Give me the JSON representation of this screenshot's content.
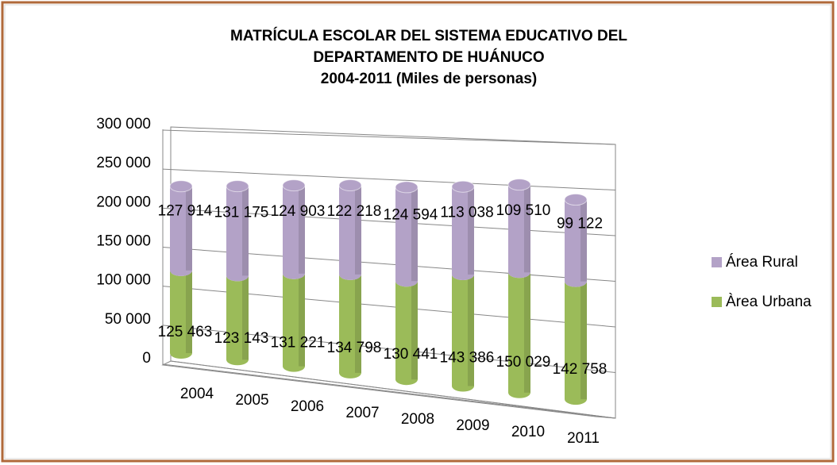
{
  "chart_data": {
    "type": "bar3d_stacked",
    "title": [
      "MATRÍCULA ESCOLAR DEL SISTEMA EDUCATIVO DEL",
      "DEPARTAMENTO DE HUÁNUCO",
      "2004-2011 (Miles de personas)"
    ],
    "categories": [
      "2004",
      "2005",
      "2006",
      "2007",
      "2008",
      "2009",
      "2010",
      "2011"
    ],
    "series": [
      {
        "name": "Àrea Urbana",
        "color": "#9bbb59",
        "values": [
          125463,
          123143,
          131221,
          134798,
          130441,
          143386,
          150029,
          142758
        ],
        "value_labels": [
          "125 463",
          "123 143",
          "131 221",
          "134 798",
          "130 441",
          "143 386",
          "150 029",
          "142 758"
        ]
      },
      {
        "name": "Área Rural",
        "color": "#b3a2c7",
        "values": [
          127914,
          131175,
          124903,
          122218,
          124594,
          113038,
          109510,
          99122
        ],
        "value_labels": [
          "127 914",
          "131 175",
          "124 903",
          "122 218",
          "124 594",
          "113 038",
          "109 510",
          "99 122"
        ]
      }
    ],
    "ylim": [
      0,
      300000
    ],
    "yticks": [
      0,
      {
        "value": 50000,
        "label": "50 000"
      },
      {
        "value": 100000,
        "label": "100 000"
      },
      {
        "value": 150000,
        "label": "150 000"
      },
      {
        "value": 200000,
        "label": "200 000"
      },
      {
        "value": 250000,
        "label": "250 000"
      },
      {
        "value": 300000,
        "label": "300 000"
      }
    ],
    "grid": true,
    "legend": "right"
  }
}
